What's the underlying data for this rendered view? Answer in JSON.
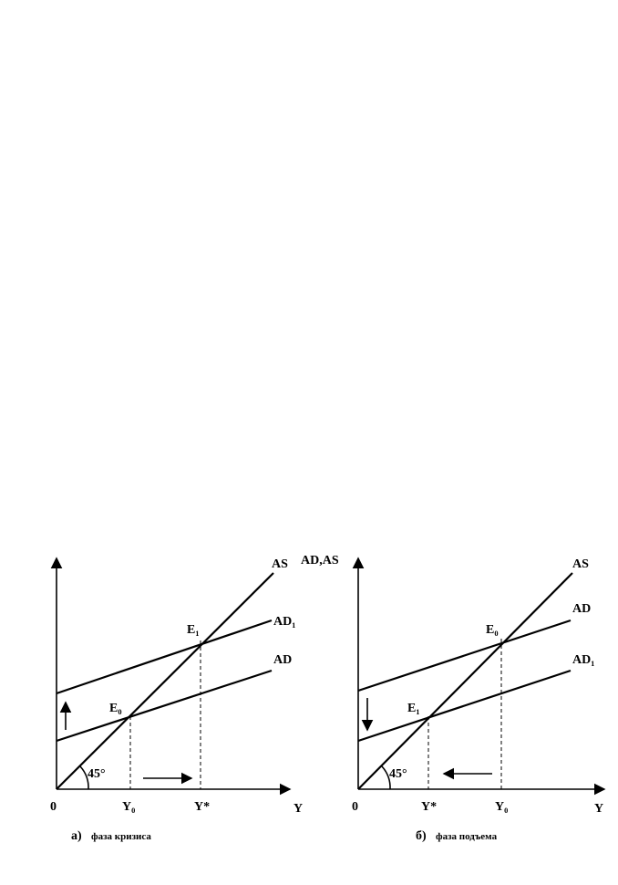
{
  "panels": [
    {
      "curves": {
        "as": "AS",
        "upper": "AD₁",
        "lower": "AD"
      },
      "points": {
        "upper": "E₁",
        "lower": "E₀"
      },
      "angle": "45°",
      "origin": "0",
      "x_ticks": [
        "Y₀",
        "Y*"
      ],
      "x_axis_label": "Y",
      "caption_marker": "а)",
      "caption": "фаза кризиса"
    },
    {
      "y_axis_label": "AD,AS",
      "curves": {
        "as": "AS",
        "upper": "AD",
        "lower": "AD₁"
      },
      "points": {
        "upper": "E₀",
        "lower": "E₁"
      },
      "angle": "45°",
      "origin": "0",
      "x_ticks": [
        "Y*",
        "Y₀"
      ],
      "x_axis_label": "Y",
      "caption_marker": "б)",
      "caption": "фаза подъема"
    }
  ]
}
